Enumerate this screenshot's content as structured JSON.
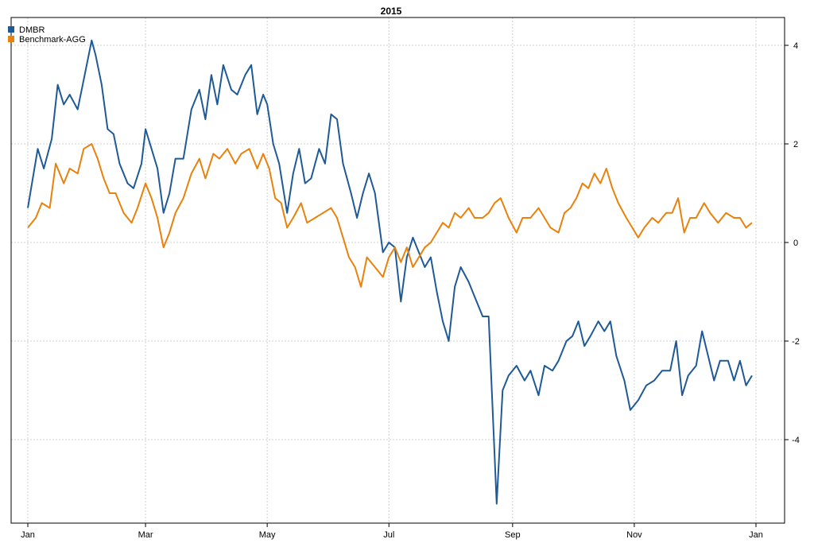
{
  "chart_data": {
    "type": "line",
    "title": "2015",
    "xlabel": "",
    "ylabel": "",
    "x_tick_labels": [
      "Jan",
      "Mar",
      "May",
      "Jul",
      "Sep",
      "Nov",
      "Jan"
    ],
    "x_tick_dates": [
      "2015-01-01",
      "2015-03-01",
      "2015-05-01",
      "2015-07-01",
      "2015-09-01",
      "2015-11-01",
      "2016-01-01"
    ],
    "ylim": [
      -5.4,
      4.3
    ],
    "y_ticks": [
      4,
      2,
      0,
      -2,
      -4
    ],
    "y_axis_side": "right",
    "grid": true,
    "legend_position": "top-left",
    "series": [
      {
        "name": "DMBR",
        "color": "#1f5a96",
        "points": [
          [
            "2015-01-01",
            0.7
          ],
          [
            "2015-01-06",
            1.9
          ],
          [
            "2015-01-09",
            1.5
          ],
          [
            "2015-01-13",
            2.1
          ],
          [
            "2015-01-16",
            3.2
          ],
          [
            "2015-01-19",
            2.8
          ],
          [
            "2015-01-22",
            3.0
          ],
          [
            "2015-01-26",
            2.7
          ],
          [
            "2015-01-29",
            3.3
          ],
          [
            "2015-02-02",
            4.1
          ],
          [
            "2015-02-04",
            3.8
          ],
          [
            "2015-02-07",
            3.2
          ],
          [
            "2015-02-10",
            2.3
          ],
          [
            "2015-02-13",
            2.2
          ],
          [
            "2015-02-16",
            1.6
          ],
          [
            "2015-02-20",
            1.2
          ],
          [
            "2015-02-23",
            1.1
          ],
          [
            "2015-02-27",
            1.6
          ],
          [
            "2015-03-01",
            2.3
          ],
          [
            "2015-03-04",
            1.9
          ],
          [
            "2015-03-07",
            1.5
          ],
          [
            "2015-03-10",
            0.6
          ],
          [
            "2015-03-13",
            1.0
          ],
          [
            "2015-03-16",
            1.7
          ],
          [
            "2015-03-20",
            1.7
          ],
          [
            "2015-03-24",
            2.7
          ],
          [
            "2015-03-28",
            3.1
          ],
          [
            "2015-03-31",
            2.5
          ],
          [
            "2015-04-03",
            3.4
          ],
          [
            "2015-04-06",
            2.8
          ],
          [
            "2015-04-09",
            3.6
          ],
          [
            "2015-04-13",
            3.1
          ],
          [
            "2015-04-16",
            3.0
          ],
          [
            "2015-04-20",
            3.4
          ],
          [
            "2015-04-23",
            3.6
          ],
          [
            "2015-04-26",
            2.6
          ],
          [
            "2015-04-29",
            3.0
          ],
          [
            "2015-05-01",
            2.8
          ],
          [
            "2015-05-04",
            2.0
          ],
          [
            "2015-05-07",
            1.6
          ],
          [
            "2015-05-11",
            0.6
          ],
          [
            "2015-05-14",
            1.4
          ],
          [
            "2015-05-17",
            1.9
          ],
          [
            "2015-05-20",
            1.2
          ],
          [
            "2015-05-23",
            1.3
          ],
          [
            "2015-05-27",
            1.9
          ],
          [
            "2015-05-30",
            1.6
          ],
          [
            "2015-06-02",
            2.6
          ],
          [
            "2015-06-05",
            2.5
          ],
          [
            "2015-06-08",
            1.6
          ],
          [
            "2015-06-12",
            1.0
          ],
          [
            "2015-06-15",
            0.5
          ],
          [
            "2015-06-18",
            1.0
          ],
          [
            "2015-06-21",
            1.4
          ],
          [
            "2015-06-24",
            1.0
          ],
          [
            "2015-06-28",
            -0.2
          ],
          [
            "2015-07-01",
            0.0
          ],
          [
            "2015-07-04",
            -0.1
          ],
          [
            "2015-07-07",
            -1.2
          ],
          [
            "2015-07-10",
            -0.3
          ],
          [
            "2015-07-13",
            0.1
          ],
          [
            "2015-07-16",
            -0.2
          ],
          [
            "2015-07-19",
            -0.5
          ],
          [
            "2015-07-22",
            -0.3
          ],
          [
            "2015-07-25",
            -1.0
          ],
          [
            "2015-07-28",
            -1.6
          ],
          [
            "2015-07-31",
            -2.0
          ],
          [
            "2015-08-03",
            -0.9
          ],
          [
            "2015-08-06",
            -0.5
          ],
          [
            "2015-08-10",
            -0.8
          ],
          [
            "2015-08-13",
            -1.1
          ],
          [
            "2015-08-17",
            -1.5
          ],
          [
            "2015-08-20",
            -1.5
          ],
          [
            "2015-08-24",
            -5.3
          ],
          [
            "2015-08-27",
            -3.0
          ],
          [
            "2015-08-30",
            -2.7
          ],
          [
            "2015-09-03",
            -2.5
          ],
          [
            "2015-09-07",
            -2.8
          ],
          [
            "2015-09-10",
            -2.6
          ],
          [
            "2015-09-14",
            -3.1
          ],
          [
            "2015-09-17",
            -2.5
          ],
          [
            "2015-09-21",
            -2.6
          ],
          [
            "2015-09-24",
            -2.4
          ],
          [
            "2015-09-28",
            -2.0
          ],
          [
            "2015-10-01",
            -1.9
          ],
          [
            "2015-10-04",
            -1.6
          ],
          [
            "2015-10-07",
            -2.1
          ],
          [
            "2015-10-10",
            -1.9
          ],
          [
            "2015-10-14",
            -1.6
          ],
          [
            "2015-10-17",
            -1.8
          ],
          [
            "2015-10-20",
            -1.6
          ],
          [
            "2015-10-23",
            -2.3
          ],
          [
            "2015-10-27",
            -2.8
          ],
          [
            "2015-10-30",
            -3.4
          ],
          [
            "2015-11-03",
            -3.2
          ],
          [
            "2015-11-07",
            -2.9
          ],
          [
            "2015-11-11",
            -2.8
          ],
          [
            "2015-11-15",
            -2.6
          ],
          [
            "2015-11-19",
            -2.6
          ],
          [
            "2015-11-22",
            -2.0
          ],
          [
            "2015-11-25",
            -3.1
          ],
          [
            "2015-11-28",
            -2.7
          ],
          [
            "2015-12-02",
            -2.5
          ],
          [
            "2015-12-05",
            -1.8
          ],
          [
            "2015-12-08",
            -2.3
          ],
          [
            "2015-12-11",
            -2.8
          ],
          [
            "2015-12-14",
            -2.4
          ],
          [
            "2015-12-18",
            -2.4
          ],
          [
            "2015-12-21",
            -2.8
          ],
          [
            "2015-12-24",
            -2.4
          ],
          [
            "2015-12-27",
            -2.9
          ],
          [
            "2015-12-30",
            -2.7
          ]
        ]
      },
      {
        "name": "Benchmark-AGG",
        "color": "#e8820c",
        "points": [
          [
            "2015-01-01",
            0.3
          ],
          [
            "2015-01-05",
            0.5
          ],
          [
            "2015-01-08",
            0.8
          ],
          [
            "2015-01-12",
            0.7
          ],
          [
            "2015-01-15",
            1.6
          ],
          [
            "2015-01-19",
            1.2
          ],
          [
            "2015-01-22",
            1.5
          ],
          [
            "2015-01-26",
            1.4
          ],
          [
            "2015-01-29",
            1.9
          ],
          [
            "2015-02-02",
            2.0
          ],
          [
            "2015-02-05",
            1.7
          ],
          [
            "2015-02-08",
            1.3
          ],
          [
            "2015-02-11",
            1.0
          ],
          [
            "2015-02-14",
            1.0
          ],
          [
            "2015-02-18",
            0.6
          ],
          [
            "2015-02-22",
            0.4
          ],
          [
            "2015-02-25",
            0.7
          ],
          [
            "2015-03-01",
            1.2
          ],
          [
            "2015-03-04",
            0.9
          ],
          [
            "2015-03-07",
            0.5
          ],
          [
            "2015-03-10",
            -0.1
          ],
          [
            "2015-03-13",
            0.2
          ],
          [
            "2015-03-16",
            0.6
          ],
          [
            "2015-03-20",
            0.9
          ],
          [
            "2015-03-24",
            1.4
          ],
          [
            "2015-03-28",
            1.7
          ],
          [
            "2015-03-31",
            1.3
          ],
          [
            "2015-04-04",
            1.8
          ],
          [
            "2015-04-07",
            1.7
          ],
          [
            "2015-04-11",
            1.9
          ],
          [
            "2015-04-15",
            1.6
          ],
          [
            "2015-04-18",
            1.8
          ],
          [
            "2015-04-22",
            1.9
          ],
          [
            "2015-04-26",
            1.5
          ],
          [
            "2015-04-29",
            1.8
          ],
          [
            "2015-05-02",
            1.5
          ],
          [
            "2015-05-05",
            0.9
          ],
          [
            "2015-05-08",
            0.8
          ],
          [
            "2015-05-11",
            0.3
          ],
          [
            "2015-05-14",
            0.5
          ],
          [
            "2015-05-18",
            0.8
          ],
          [
            "2015-05-21",
            0.4
          ],
          [
            "2015-05-25",
            0.5
          ],
          [
            "2015-05-29",
            0.6
          ],
          [
            "2015-06-02",
            0.7
          ],
          [
            "2015-06-05",
            0.5
          ],
          [
            "2015-06-08",
            0.1
          ],
          [
            "2015-06-11",
            -0.3
          ],
          [
            "2015-06-14",
            -0.5
          ],
          [
            "2015-06-17",
            -0.9
          ],
          [
            "2015-06-20",
            -0.3
          ],
          [
            "2015-06-24",
            -0.5
          ],
          [
            "2015-06-28",
            -0.7
          ],
          [
            "2015-07-01",
            -0.3
          ],
          [
            "2015-07-04",
            -0.1
          ],
          [
            "2015-07-07",
            -0.4
          ],
          [
            "2015-07-10",
            -0.1
          ],
          [
            "2015-07-13",
            -0.5
          ],
          [
            "2015-07-16",
            -0.3
          ],
          [
            "2015-07-19",
            -0.1
          ],
          [
            "2015-07-22",
            0.0
          ],
          [
            "2015-07-25",
            0.2
          ],
          [
            "2015-07-28",
            0.4
          ],
          [
            "2015-07-31",
            0.3
          ],
          [
            "2015-08-03",
            0.6
          ],
          [
            "2015-08-06",
            0.5
          ],
          [
            "2015-08-10",
            0.7
          ],
          [
            "2015-08-13",
            0.5
          ],
          [
            "2015-08-17",
            0.5
          ],
          [
            "2015-08-20",
            0.6
          ],
          [
            "2015-08-23",
            0.8
          ],
          [
            "2015-08-26",
            0.9
          ],
          [
            "2015-08-30",
            0.5
          ],
          [
            "2015-09-03",
            0.2
          ],
          [
            "2015-09-06",
            0.5
          ],
          [
            "2015-09-10",
            0.5
          ],
          [
            "2015-09-14",
            0.7
          ],
          [
            "2015-09-17",
            0.5
          ],
          [
            "2015-09-20",
            0.3
          ],
          [
            "2015-09-24",
            0.2
          ],
          [
            "2015-09-27",
            0.6
          ],
          [
            "2015-09-30",
            0.7
          ],
          [
            "2015-10-03",
            0.9
          ],
          [
            "2015-10-06",
            1.2
          ],
          [
            "2015-10-09",
            1.1
          ],
          [
            "2015-10-12",
            1.4
          ],
          [
            "2015-10-15",
            1.2
          ],
          [
            "2015-10-18",
            1.5
          ],
          [
            "2015-10-21",
            1.1
          ],
          [
            "2015-10-24",
            0.8
          ],
          [
            "2015-10-28",
            0.5
          ],
          [
            "2015-10-31",
            0.3
          ],
          [
            "2015-11-03",
            0.1
          ],
          [
            "2015-11-06",
            0.3
          ],
          [
            "2015-11-10",
            0.5
          ],
          [
            "2015-11-13",
            0.4
          ],
          [
            "2015-11-17",
            0.6
          ],
          [
            "2015-11-20",
            0.6
          ],
          [
            "2015-11-23",
            0.9
          ],
          [
            "2015-11-26",
            0.2
          ],
          [
            "2015-11-29",
            0.5
          ],
          [
            "2015-12-02",
            0.5
          ],
          [
            "2015-12-06",
            0.8
          ],
          [
            "2015-12-09",
            0.6
          ],
          [
            "2015-12-13",
            0.4
          ],
          [
            "2015-12-17",
            0.6
          ],
          [
            "2015-12-21",
            0.5
          ],
          [
            "2015-12-24",
            0.5
          ],
          [
            "2015-12-27",
            0.3
          ],
          [
            "2015-12-30",
            0.4
          ]
        ]
      }
    ]
  }
}
